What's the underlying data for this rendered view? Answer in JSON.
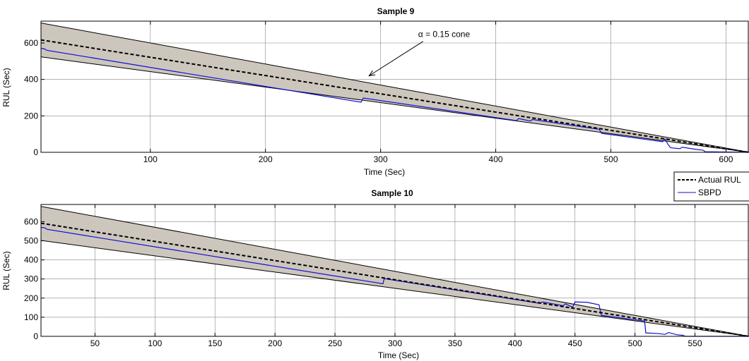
{
  "chart_data": [
    {
      "type": "line",
      "title": "Sample 9",
      "xlabel": "Time (Sec)",
      "ylabel": "RUL (Sec)",
      "xlim": [
        5,
        620
      ],
      "ylim": [
        0,
        720
      ],
      "xticks": [
        100,
        200,
        300,
        400,
        500,
        600
      ],
      "yticks": [
        0,
        200,
        400,
        600
      ],
      "grid": true,
      "cone": {
        "label": "α = 0.15 cone",
        "alpha": 0.15,
        "upper": [
          [
            5,
            710
          ],
          [
            620,
            0
          ]
        ],
        "lower": [
          [
            5,
            524
          ],
          [
            620,
            0
          ]
        ],
        "annotation_arrow_to": [
          290,
          420
        ],
        "annotation_text_at": [
          340,
          640
        ]
      },
      "series": [
        {
          "name": "Actual RUL",
          "color": "#000000",
          "dash": true,
          "points": [
            [
              5,
              617
            ],
            [
              620,
              0
            ]
          ]
        },
        {
          "name": "SBPD",
          "color": "#1010d0",
          "dash": false,
          "points": [
            [
              5,
              570
            ],
            [
              8,
              568
            ],
            [
              10,
              560
            ],
            [
              283,
              275
            ],
            [
              285,
              298
            ],
            [
              418,
              174
            ],
            [
              420,
              185
            ],
            [
              430,
              172
            ],
            [
              432,
              180
            ],
            [
              490,
              126
            ],
            [
              492,
              104
            ],
            [
              545,
              58
            ],
            [
              547,
              72
            ],
            [
              550,
              40
            ],
            [
              552,
              25
            ],
            [
              560,
              20
            ],
            [
              562,
              28
            ],
            [
              575,
              15
            ],
            [
              580,
              12
            ],
            [
              582,
              3
            ],
            [
              620,
              0
            ]
          ]
        }
      ],
      "legend": {
        "placement": "bottom-right",
        "entries": [
          "Actual RUL",
          "SBPD"
        ]
      }
    },
    {
      "type": "line",
      "title": "Sample 10",
      "xlabel": "Time (Sec)",
      "ylabel": "RUL (Sec)",
      "xlim": [
        5,
        595
      ],
      "ylim": [
        0,
        690
      ],
      "xticks": [
        50,
        100,
        150,
        200,
        250,
        300,
        350,
        400,
        450,
        500,
        550
      ],
      "yticks": [
        0,
        100,
        200,
        300,
        400,
        500,
        600
      ],
      "grid": true,
      "cone": {
        "alpha": 0.15,
        "upper": [
          [
            5,
            680
          ],
          [
            595,
            0
          ]
        ],
        "lower": [
          [
            5,
            502
          ],
          [
            595,
            0
          ]
        ]
      },
      "series": [
        {
          "name": "Actual RUL",
          "color": "#000000",
          "dash": true,
          "points": [
            [
              5,
              592
            ],
            [
              595,
              0
            ]
          ]
        },
        {
          "name": "SBPD",
          "color": "#1010d0",
          "dash": false,
          "points": [
            [
              5,
              570
            ],
            [
              8,
              568
            ],
            [
              10,
              560
            ],
            [
              290,
              275
            ],
            [
              291,
              302
            ],
            [
              421,
              172
            ],
            [
              423,
              180
            ],
            [
              440,
              160
            ],
            [
              442,
              170
            ],
            [
              448,
              152
            ],
            [
              450,
              180
            ],
            [
              460,
              178
            ],
            [
              470,
              165
            ],
            [
              472,
              110
            ],
            [
              508,
              80
            ],
            [
              509,
              18
            ],
            [
              520,
              14
            ],
            [
              525,
              10
            ],
            [
              528,
              20
            ],
            [
              535,
              8
            ],
            [
              540,
              5
            ],
            [
              542,
              0
            ],
            [
              595,
              0
            ]
          ]
        }
      ]
    }
  ]
}
